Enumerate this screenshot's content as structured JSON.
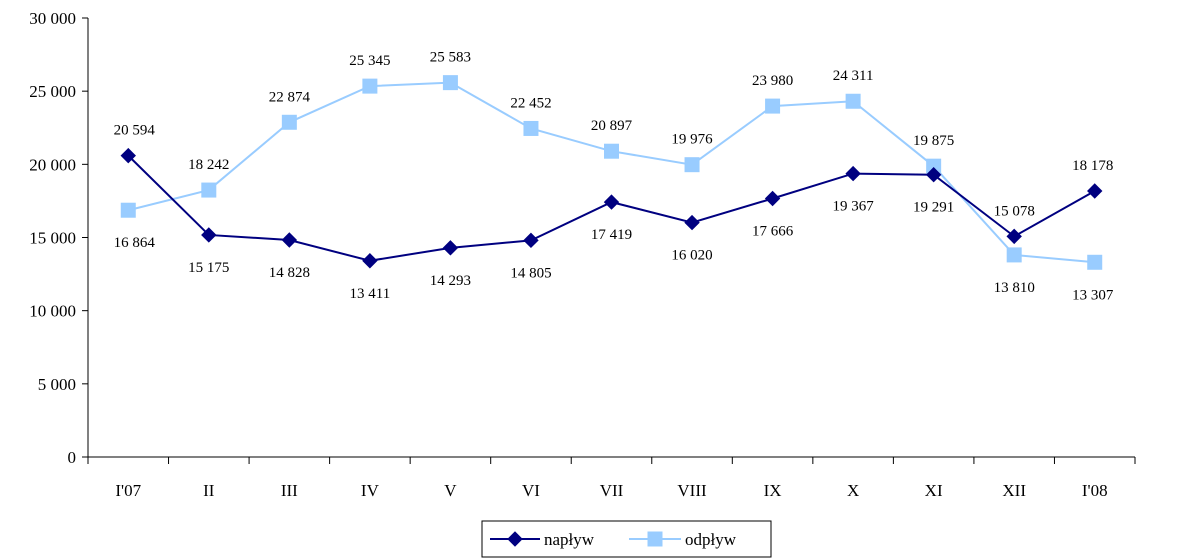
{
  "chart_data": {
    "type": "line",
    "categories": [
      "I'07",
      "II",
      "III",
      "IV",
      "V",
      "VI",
      "VII",
      "VIII",
      "IX",
      "X",
      "XI",
      "XII",
      "I'08"
    ],
    "ylim": [
      0,
      30000
    ],
    "yticks": [
      0,
      5000,
      10000,
      15000,
      20000,
      25000,
      30000
    ],
    "ytick_labels": [
      "0",
      "5 000",
      "10 000",
      "15 000",
      "20 000",
      "25 000",
      "30 000"
    ],
    "grid": false,
    "legend_position": "bottom-center",
    "series": [
      {
        "name": "napływ",
        "color": "#000080",
        "marker": "diamond",
        "values": [
          20594,
          15175,
          14828,
          13411,
          14293,
          14805,
          17419,
          16020,
          17666,
          19367,
          19291,
          15078,
          18178
        ],
        "labels": [
          "20 594",
          "15 175",
          "14 828",
          "13 411",
          "14 293",
          "14 805",
          "17 419",
          "16 020",
          "17 666",
          "19 367",
          "19 291",
          "15 078",
          "18 178"
        ]
      },
      {
        "name": "odpływ",
        "color": "#99CCFF",
        "marker": "square",
        "values": [
          16864,
          18242,
          22874,
          25345,
          25583,
          22452,
          20897,
          19976,
          23980,
          24311,
          19875,
          13810,
          13307
        ],
        "labels": [
          "16 864",
          "18 242",
          "22 874",
          "25 345",
          "25 583",
          "22 452",
          "20 897",
          "19 976",
          "23 980",
          "24 311",
          "19 875",
          "13 810",
          "13 307"
        ]
      }
    ]
  }
}
